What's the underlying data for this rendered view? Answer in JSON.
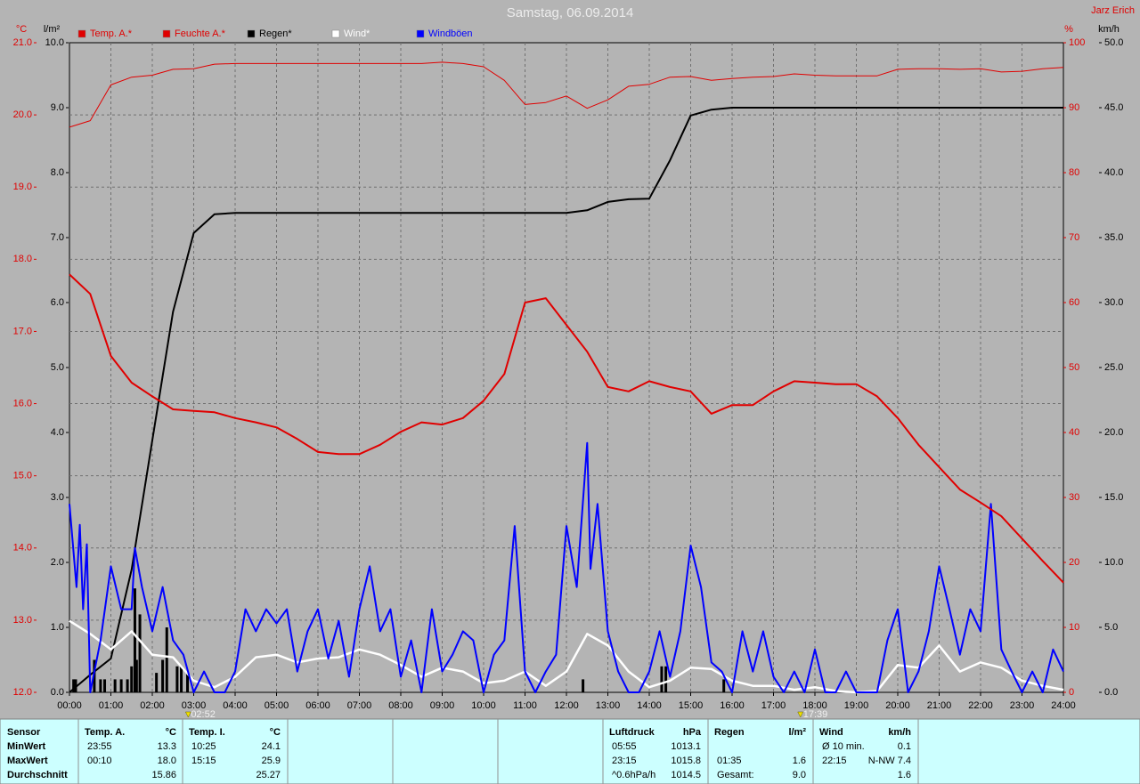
{
  "chart_data": {
    "type": "line",
    "title": "Samstag, 06.09.2014",
    "author": "Jarz Erich",
    "y_label": "°C",
    "y2_label": "%",
    "y3_label": "l/m²",
    "y4_label": "km/h",
    "axis_colors": {
      "y": "#e00000",
      "y2": "#e00000",
      "y3": "#000000",
      "y4": "#000000"
    },
    "grid": true,
    "xlim": [
      0,
      24
    ],
    "xticks": [
      {
        "value": 0,
        "label": "00:00"
      },
      {
        "value": 1,
        "label": "01:00"
      },
      {
        "value": 2,
        "label": "02:00"
      },
      {
        "value": 3,
        "label": "03:00"
      },
      {
        "value": 4,
        "label": "04:00"
      },
      {
        "value": 5,
        "label": "05:00"
      },
      {
        "value": 6,
        "label": "06:00"
      },
      {
        "value": 7,
        "label": "07:00"
      },
      {
        "value": 8,
        "label": "08:00"
      },
      {
        "value": 9,
        "label": "09:00"
      },
      {
        "value": 10,
        "label": "10:00"
      },
      {
        "value": 11,
        "label": "11:00"
      },
      {
        "value": 12,
        "label": "12:00"
      },
      {
        "value": 13,
        "label": "13:00"
      },
      {
        "value": 14,
        "label": "14:00"
      },
      {
        "value": 15,
        "label": "15:00"
      },
      {
        "value": 16,
        "label": "16:00"
      },
      {
        "value": 17,
        "label": "17:00"
      },
      {
        "value": 18,
        "label": "18:00"
      },
      {
        "value": 19,
        "label": "19:00"
      },
      {
        "value": 20,
        "label": "20:00"
      },
      {
        "value": 21,
        "label": "21:00"
      },
      {
        "value": 22,
        "label": "22:00"
      },
      {
        "value": 23,
        "label": "23:00"
      },
      {
        "value": 24,
        "label": "24:00"
      }
    ],
    "ylim": [
      12,
      21
    ],
    "yticks": [
      {
        "value": 12,
        "label": "12.0"
      },
      {
        "value": 13,
        "label": "13.0"
      },
      {
        "value": 14,
        "label": "14.0"
      },
      {
        "value": 15,
        "label": "15.0"
      },
      {
        "value": 16,
        "label": "16.0"
      },
      {
        "value": 17,
        "label": "17.0"
      },
      {
        "value": 18,
        "label": "18.0"
      },
      {
        "value": 19,
        "label": "19.0"
      },
      {
        "value": 20,
        "label": "20.0"
      },
      {
        "value": 21,
        "label": "21.0"
      }
    ],
    "y2lim": [
      0,
      100
    ],
    "y2ticks": [
      0,
      10,
      20,
      30,
      40,
      50,
      60,
      70,
      80,
      90,
      100
    ],
    "y3lim": [
      0,
      10
    ],
    "y3ticks": [
      {
        "value": 0,
        "label": "0.0"
      },
      {
        "value": 1,
        "label": "1.0"
      },
      {
        "value": 2,
        "label": "2.0"
      },
      {
        "value": 3,
        "label": "3.0"
      },
      {
        "value": 4,
        "label": "4.0"
      },
      {
        "value": 5,
        "label": "5.0"
      },
      {
        "value": 6,
        "label": "6.0"
      },
      {
        "value": 7,
        "label": "7.0"
      },
      {
        "value": 8,
        "label": "8.0"
      },
      {
        "value": 9,
        "label": "9.0"
      },
      {
        "value": 10,
        "label": "10.0"
      }
    ],
    "y4lim": [
      0,
      50
    ],
    "y4ticks": [
      {
        "value": 0,
        "label": "0.0"
      },
      {
        "value": 5,
        "label": "5.0"
      },
      {
        "value": 10,
        "label": "10.0"
      },
      {
        "value": 15,
        "label": "15.0"
      },
      {
        "value": 20,
        "label": "20.0"
      },
      {
        "value": 25,
        "label": "25.0"
      },
      {
        "value": 30,
        "label": "30.0"
      },
      {
        "value": 35,
        "label": "35.0"
      },
      {
        "value": 40,
        "label": "40.0"
      },
      {
        "value": 45,
        "label": "45.0"
      },
      {
        "value": 50,
        "label": "50.0"
      }
    ],
    "x": [
      0,
      0.5,
      1,
      1.5,
      2,
      2.5,
      3,
      3.5,
      4,
      4.5,
      5,
      5.5,
      6,
      6.5,
      7,
      7.5,
      8,
      8.5,
      9,
      9.5,
      10,
      10.5,
      11,
      11.5,
      12,
      12.5,
      13,
      13.5,
      14,
      14.5,
      15,
      15.5,
      16,
      16.5,
      17,
      17.5,
      18,
      18.5,
      19,
      19.5,
      20,
      20.5,
      21,
      21.5,
      22,
      22.5,
      23,
      23.5,
      24
    ],
    "series": [
      {
        "name": "Temp. A.*",
        "color": "#e00000",
        "axis": "y",
        "width": 2,
        "values": [
          17.79,
          17.52,
          16.66,
          16.29,
          16.1,
          15.92,
          15.9,
          15.88,
          15.8,
          15.74,
          15.67,
          15.51,
          15.33,
          15.3,
          15.3,
          15.43,
          15.61,
          15.74,
          15.71,
          15.8,
          16.04,
          16.41,
          17.4,
          17.46,
          17.09,
          16.72,
          16.23,
          16.17,
          16.31,
          16.23,
          16.17,
          15.86,
          15.98,
          15.98,
          16.17,
          16.31,
          16.29,
          16.27,
          16.27,
          16.1,
          15.8,
          15.43,
          15.12,
          14.81,
          14.63,
          14.44,
          14.13,
          13.82,
          13.52
        ]
      },
      {
        "name": "Feuchte A.*",
        "color": "#e00000",
        "axis": "y2",
        "width": 1,
        "values": [
          87,
          88,
          93.5,
          94.7,
          95,
          95.9,
          96,
          96.7,
          96.8,
          96.8,
          96.8,
          96.8,
          96.8,
          96.8,
          96.8,
          96.8,
          96.8,
          96.8,
          97,
          96.8,
          96.3,
          94.2,
          90.5,
          90.8,
          91.8,
          89.9,
          91.2,
          93.3,
          93.6,
          94.7,
          94.8,
          94.2,
          94.5,
          94.7,
          94.8,
          95.2,
          95,
          94.9,
          94.9,
          94.9,
          95.9,
          96,
          96,
          95.9,
          96,
          95.5,
          95.6,
          96,
          96.2
        ]
      },
      {
        "name": "Regen*",
        "color": "#000000",
        "axis": "y3",
        "width": 2,
        "values": [
          0,
          0.27,
          0.52,
          1.89,
          3.88,
          5.86,
          7.07,
          7.36,
          7.38,
          7.38,
          7.38,
          7.38,
          7.38,
          7.38,
          7.38,
          7.38,
          7.38,
          7.38,
          7.38,
          7.38,
          7.38,
          7.38,
          7.38,
          7.38,
          7.38,
          7.42,
          7.55,
          7.59,
          7.6,
          8.19,
          8.88,
          8.97,
          9.0,
          9.0,
          9.0,
          9.0,
          9.0,
          9.0,
          9.0,
          9.0,
          9.0,
          9.0,
          9.0,
          9.0,
          9.0,
          9.0,
          9.0,
          9.0,
          9.0
        ]
      },
      {
        "name": "Wind*",
        "color": "#ffffff",
        "axis": "y4",
        "width": 2.5,
        "values": [
          5.5,
          4.5,
          3.3,
          4.7,
          2.9,
          2.7,
          0.9,
          0.4,
          1.2,
          2.7,
          2.9,
          2.3,
          2.6,
          2.7,
          3.3,
          2.9,
          2.1,
          1.2,
          1.9,
          1.6,
          0.7,
          0.9,
          1.6,
          0.5,
          1.6,
          4.5,
          3.6,
          1.6,
          0.4,
          0.9,
          1.9,
          1.8,
          0.9,
          0.5,
          0.5,
          0.2,
          0.4,
          0.1,
          0,
          0.1,
          2.1,
          1.9,
          3.6,
          1.6,
          2.3,
          1.9,
          0.9,
          0.5,
          0.2
        ]
      },
      {
        "name": "Windböen",
        "color": "#0000ff",
        "axis": "y4",
        "width": 2,
        "x": [
          0,
          0.17,
          0.25,
          0.33,
          0.42,
          0.5,
          0.75,
          1,
          1.25,
          1.5,
          1.58,
          1.75,
          2,
          2.25,
          2.5,
          2.75,
          3,
          3.25,
          3.5,
          3.75,
          4,
          4.25,
          4.5,
          4.75,
          5,
          5.25,
          5.5,
          5.75,
          6,
          6.25,
          6.5,
          6.75,
          7,
          7.25,
          7.5,
          7.75,
          8,
          8.25,
          8.5,
          8.75,
          9,
          9.25,
          9.5,
          9.75,
          10,
          10.25,
          10.5,
          10.75,
          11,
          11.25,
          11.5,
          11.75,
          12,
          12.25,
          12.5,
          12.58,
          12.75,
          13,
          13.25,
          13.5,
          13.75,
          14,
          14.25,
          14.5,
          14.75,
          15,
          15.25,
          15.5,
          15.75,
          16,
          16.25,
          16.5,
          16.75,
          17,
          17.25,
          17.5,
          17.75,
          18,
          18.25,
          18.5,
          18.75,
          19,
          19.5,
          19.75,
          20,
          20.25,
          20.5,
          20.75,
          21,
          21.25,
          21.5,
          21.75,
          22,
          22.25,
          22.5,
          22.75,
          23,
          23.25,
          23.5,
          23.75,
          24
        ],
        "values": [
          14.5,
          8.1,
          12.9,
          6.4,
          11.4,
          0,
          4.0,
          9.7,
          6.4,
          6.4,
          11.1,
          8.1,
          4.7,
          8.1,
          4.0,
          2.9,
          0,
          1.6,
          0,
          0,
          1.6,
          6.4,
          4.7,
          6.4,
          5.3,
          6.4,
          1.6,
          4.7,
          6.4,
          2.6,
          5.5,
          1.2,
          6.4,
          9.7,
          4.7,
          6.4,
          1.2,
          4.0,
          0,
          6.4,
          1.6,
          2.9,
          4.7,
          4.0,
          0,
          2.9,
          4.0,
          12.8,
          1.6,
          0,
          1.6,
          2.9,
          12.8,
          8.1,
          19.2,
          9.5,
          14.5,
          4.7,
          1.6,
          0,
          0,
          1.6,
          4.7,
          1.2,
          4.7,
          11.3,
          8.1,
          2.3,
          1.6,
          0,
          4.7,
          1.6,
          4.7,
          1.2,
          0,
          1.6,
          0,
          3.3,
          0,
          0,
          1.6,
          0,
          0,
          4.0,
          6.4,
          0,
          1.6,
          4.7,
          9.7,
          6.4,
          2.9,
          6.4,
          4.7,
          14.5,
          3.3,
          1.6,
          0,
          1.6,
          0,
          3.3,
          1.6
        ]
      }
    ],
    "rain_bars": {
      "color": "#000000",
      "axis": "y3",
      "x": [
        0.1,
        0.15,
        0.6,
        0.75,
        0.85,
        1.1,
        1.25,
        1.4,
        1.5,
        1.58,
        1.62,
        1.7,
        2.1,
        2.25,
        2.35,
        2.6,
        2.7,
        2.85,
        12.4,
        14.3,
        14.4,
        15.8
      ],
      "values": [
        0.2,
        0.2,
        0.5,
        0.2,
        0.2,
        0.2,
        0.2,
        0.2,
        0.4,
        1.6,
        0.5,
        1.2,
        0.3,
        0.5,
        1.0,
        0.4,
        0.4,
        0.3,
        0.2,
        0.4,
        0.4,
        0.2
      ]
    },
    "markers": [
      {
        "x": 2.867,
        "label": "02:52"
      },
      {
        "x": 17.65,
        "label": "17:39"
      }
    ]
  },
  "stats": {
    "header": "Sensor",
    "row_labels": [
      "MinWert",
      "MaxWert",
      "Durchschnitt"
    ],
    "columns": [
      {
        "name": "Temp. A.",
        "unit": "°C",
        "rows": [
          {
            "time": "23:55",
            "value": "13.3"
          },
          {
            "time": "00:10",
            "value": "18.0"
          },
          {
            "value": "15.86"
          }
        ]
      },
      {
        "name": "Temp. I.",
        "unit": "°C",
        "rows": [
          {
            "time": "10:25",
            "value": "24.1"
          },
          {
            "time": "15:15",
            "value": "25.9"
          },
          {
            "value": "25.27"
          }
        ]
      },
      {
        "name": "Luftdruck",
        "unit": "hPa",
        "rows": [
          {
            "time": "05:55",
            "value": "1013.1"
          },
          {
            "time": "23:15",
            "value": "1015.8"
          },
          {
            "time": "^0.6hPa/h",
            "value": "1014.5"
          }
        ]
      },
      {
        "name": "Regen",
        "unit": "l/m²",
        "rows": [
          null,
          {
            "time": "01:35",
            "value": "1.6"
          },
          {
            "time": "Gesamt:",
            "value": "9.0"
          }
        ]
      },
      {
        "name": "Wind",
        "unit": "km/h",
        "rows": [
          {
            "time": "Ø 10 min.",
            "value": "0.1"
          },
          {
            "time": "22:15",
            "value": "N-NW 7.4"
          },
          {
            "value": "1.6"
          }
        ]
      }
    ]
  }
}
